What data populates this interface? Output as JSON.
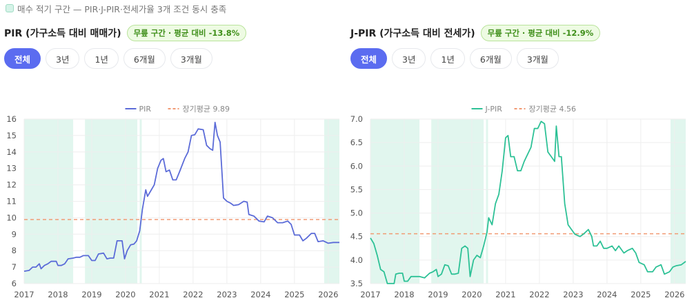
{
  "legend": {
    "label": "매수 적기 구간 — PIR·J-PIR·전세가율 3개 조건 동시 충족"
  },
  "colors": {
    "pir": "#5b6bd8",
    "jpir": "#2dc196",
    "avg": "#f19a73",
    "zone": "#d9f4ea",
    "grid": "#eeeeee"
  },
  "tabs": [
    "전체",
    "3년",
    "1년",
    "6개월",
    "3개월"
  ],
  "active_tab": "전체",
  "charts": [
    {
      "title": "PIR (가구소득 대비 매매가)",
      "badge": "무릎 구간 · 평균 대비 -13.8%",
      "series_label": "PIR",
      "avg_label": "장기평균 9.89",
      "y_ticks": [
        "6",
        "7",
        "8",
        "9",
        "10",
        "11",
        "12",
        "13",
        "14",
        "15",
        "16"
      ],
      "x_ticks": [
        "2017",
        "2018",
        "2019",
        "2020",
        "2021",
        "2022",
        "2023",
        "2024",
        "2025",
        "2026"
      ]
    },
    {
      "title": "J-PIR (가구소득 대비 전세가)",
      "badge": "무릎 구간 · 평균 대비 -12.9%",
      "series_label": "J-PIR",
      "avg_label": "장기평균 4.56",
      "y_ticks": [
        "3.5",
        "4.0",
        "4.5",
        "5.0",
        "5.5",
        "6.0",
        "6.5",
        "7.0"
      ],
      "x_ticks": [
        "2017",
        "2018",
        "2019",
        "2020",
        "2021",
        "2022",
        "2023",
        "2024",
        "2025",
        "2026"
      ]
    }
  ],
  "chart_data": [
    {
      "type": "line",
      "ylim": [
        6,
        16
      ],
      "xlim": [
        2017.0,
        2026.33
      ],
      "avg": 9.89,
      "buy_zones": [
        [
          2017.0,
          2018.45
        ],
        [
          2018.8,
          2020.35
        ],
        [
          2020.42,
          2020.48
        ],
        [
          2025.88,
          2026.33
        ]
      ],
      "series": [
        {
          "name": "PIR",
          "points": [
            [
              2017.0,
              6.75
            ],
            [
              2017.15,
              6.8
            ],
            [
              2017.25,
              7.0
            ],
            [
              2017.35,
              7.0
            ],
            [
              2017.45,
              7.2
            ],
            [
              2017.5,
              6.9
            ],
            [
              2017.6,
              7.1
            ],
            [
              2017.7,
              7.2
            ],
            [
              2017.8,
              7.35
            ],
            [
              2017.95,
              7.35
            ],
            [
              2018.0,
              7.1
            ],
            [
              2018.1,
              7.1
            ],
            [
              2018.2,
              7.2
            ],
            [
              2018.3,
              7.5
            ],
            [
              2018.45,
              7.55
            ],
            [
              2018.55,
              7.6
            ],
            [
              2018.65,
              7.6
            ],
            [
              2018.75,
              7.7
            ],
            [
              2018.9,
              7.7
            ],
            [
              2019.0,
              7.4
            ],
            [
              2019.1,
              7.4
            ],
            [
              2019.2,
              7.8
            ],
            [
              2019.35,
              7.85
            ],
            [
              2019.45,
              7.5
            ],
            [
              2019.55,
              7.55
            ],
            [
              2019.65,
              7.55
            ],
            [
              2019.75,
              8.6
            ],
            [
              2019.9,
              8.6
            ],
            [
              2019.97,
              7.5
            ],
            [
              2020.05,
              8.0
            ],
            [
              2020.15,
              8.35
            ],
            [
              2020.25,
              8.4
            ],
            [
              2020.33,
              8.6
            ],
            [
              2020.42,
              9.2
            ],
            [
              2020.5,
              10.5
            ],
            [
              2020.6,
              11.7
            ],
            [
              2020.65,
              11.3
            ],
            [
              2020.75,
              11.65
            ],
            [
              2020.85,
              12.0
            ],
            [
              2020.95,
              13.0
            ],
            [
              2021.05,
              13.5
            ],
            [
              2021.12,
              13.6
            ],
            [
              2021.2,
              12.8
            ],
            [
              2021.3,
              12.9
            ],
            [
              2021.4,
              12.3
            ],
            [
              2021.5,
              12.3
            ],
            [
              2021.6,
              12.8
            ],
            [
              2021.75,
              13.6
            ],
            [
              2021.85,
              14.0
            ],
            [
              2021.95,
              15.0
            ],
            [
              2022.05,
              15.05
            ],
            [
              2022.15,
              15.4
            ],
            [
              2022.3,
              15.35
            ],
            [
              2022.4,
              14.4
            ],
            [
              2022.5,
              14.2
            ],
            [
              2022.58,
              14.1
            ],
            [
              2022.65,
              15.8
            ],
            [
              2022.72,
              15.0
            ],
            [
              2022.8,
              14.6
            ],
            [
              2022.9,
              11.2
            ],
            [
              2023.0,
              11.0
            ],
            [
              2023.1,
              10.9
            ],
            [
              2023.2,
              10.75
            ],
            [
              2023.35,
              10.8
            ],
            [
              2023.5,
              11.0
            ],
            [
              2023.6,
              10.95
            ],
            [
              2023.65,
              10.2
            ],
            [
              2023.8,
              10.1
            ],
            [
              2023.95,
              9.8
            ],
            [
              2024.1,
              9.75
            ],
            [
              2024.2,
              10.1
            ],
            [
              2024.35,
              10.0
            ],
            [
              2024.5,
              9.7
            ],
            [
              2024.65,
              9.7
            ],
            [
              2024.8,
              9.8
            ],
            [
              2024.9,
              9.6
            ],
            [
              2025.0,
              8.95
            ],
            [
              2025.15,
              8.95
            ],
            [
              2025.25,
              8.6
            ],
            [
              2025.35,
              8.75
            ],
            [
              2025.5,
              9.05
            ],
            [
              2025.6,
              9.05
            ],
            [
              2025.7,
              8.55
            ],
            [
              2025.85,
              8.6
            ],
            [
              2026.0,
              8.45
            ],
            [
              2026.15,
              8.5
            ],
            [
              2026.33,
              8.5
            ]
          ]
        }
      ]
    },
    {
      "type": "line",
      "ylim": [
        3.5,
        7.0
      ],
      "xlim": [
        2017.0,
        2026.33
      ],
      "avg": 4.56,
      "buy_zones": [
        [
          2017.0,
          2018.45
        ],
        [
          2018.8,
          2020.35
        ],
        [
          2020.42,
          2020.48
        ],
        [
          2025.88,
          2026.33
        ]
      ],
      "series": [
        {
          "name": "J-PIR",
          "points": [
            [
              2017.0,
              4.47
            ],
            [
              2017.1,
              4.35
            ],
            [
              2017.2,
              4.1
            ],
            [
              2017.3,
              3.8
            ],
            [
              2017.4,
              3.75
            ],
            [
              2017.5,
              3.5
            ],
            [
              2017.6,
              3.5
            ],
            [
              2017.7,
              3.5
            ],
            [
              2017.75,
              3.7
            ],
            [
              2017.85,
              3.72
            ],
            [
              2017.95,
              3.72
            ],
            [
              2018.0,
              3.55
            ],
            [
              2018.1,
              3.55
            ],
            [
              2018.2,
              3.65
            ],
            [
              2018.3,
              3.65
            ],
            [
              2018.45,
              3.65
            ],
            [
              2018.6,
              3.62
            ],
            [
              2018.75,
              3.72
            ],
            [
              2018.85,
              3.75
            ],
            [
              2018.95,
              3.8
            ],
            [
              2019.0,
              3.65
            ],
            [
              2019.1,
              3.7
            ],
            [
              2019.2,
              3.9
            ],
            [
              2019.3,
              3.88
            ],
            [
              2019.4,
              3.7
            ],
            [
              2019.5,
              3.7
            ],
            [
              2019.6,
              3.72
            ],
            [
              2019.7,
              4.25
            ],
            [
              2019.8,
              4.3
            ],
            [
              2019.88,
              4.25
            ],
            [
              2019.95,
              3.65
            ],
            [
              2020.05,
              4.0
            ],
            [
              2020.15,
              4.1
            ],
            [
              2020.25,
              4.05
            ],
            [
              2020.35,
              4.3
            ],
            [
              2020.45,
              4.6
            ],
            [
              2020.5,
              4.9
            ],
            [
              2020.6,
              4.75
            ],
            [
              2020.7,
              5.2
            ],
            [
              2020.8,
              5.4
            ],
            [
              2020.9,
              5.9
            ],
            [
              2021.0,
              6.6
            ],
            [
              2021.07,
              6.65
            ],
            [
              2021.15,
              6.2
            ],
            [
              2021.25,
              6.2
            ],
            [
              2021.35,
              5.9
            ],
            [
              2021.45,
              5.9
            ],
            [
              2021.55,
              6.1
            ],
            [
              2021.65,
              6.25
            ],
            [
              2021.75,
              6.4
            ],
            [
              2021.85,
              6.8
            ],
            [
              2021.95,
              6.8
            ],
            [
              2022.05,
              6.95
            ],
            [
              2022.15,
              6.9
            ],
            [
              2022.25,
              6.3
            ],
            [
              2022.35,
              6.2
            ],
            [
              2022.45,
              6.1
            ],
            [
              2022.5,
              6.85
            ],
            [
              2022.58,
              6.2
            ],
            [
              2022.65,
              6.2
            ],
            [
              2022.75,
              5.2
            ],
            [
              2022.85,
              4.75
            ],
            [
              2022.95,
              4.65
            ],
            [
              2023.05,
              4.55
            ],
            [
              2023.2,
              4.5
            ],
            [
              2023.3,
              4.55
            ],
            [
              2023.45,
              4.65
            ],
            [
              2023.55,
              4.5
            ],
            [
              2023.6,
              4.3
            ],
            [
              2023.7,
              4.3
            ],
            [
              2023.8,
              4.4
            ],
            [
              2023.9,
              4.25
            ],
            [
              2024.0,
              4.25
            ],
            [
              2024.15,
              4.3
            ],
            [
              2024.25,
              4.2
            ],
            [
              2024.35,
              4.3
            ],
            [
              2024.5,
              4.15
            ],
            [
              2024.6,
              4.2
            ],
            [
              2024.75,
              4.25
            ],
            [
              2024.85,
              4.15
            ],
            [
              2024.95,
              3.95
            ],
            [
              2025.1,
              3.9
            ],
            [
              2025.2,
              3.75
            ],
            [
              2025.35,
              3.75
            ],
            [
              2025.45,
              3.85
            ],
            [
              2025.6,
              3.9
            ],
            [
              2025.7,
              3.7
            ],
            [
              2025.85,
              3.75
            ],
            [
              2025.95,
              3.85
            ],
            [
              2026.05,
              3.88
            ],
            [
              2026.2,
              3.9
            ],
            [
              2026.33,
              3.97
            ]
          ]
        }
      ]
    }
  ]
}
